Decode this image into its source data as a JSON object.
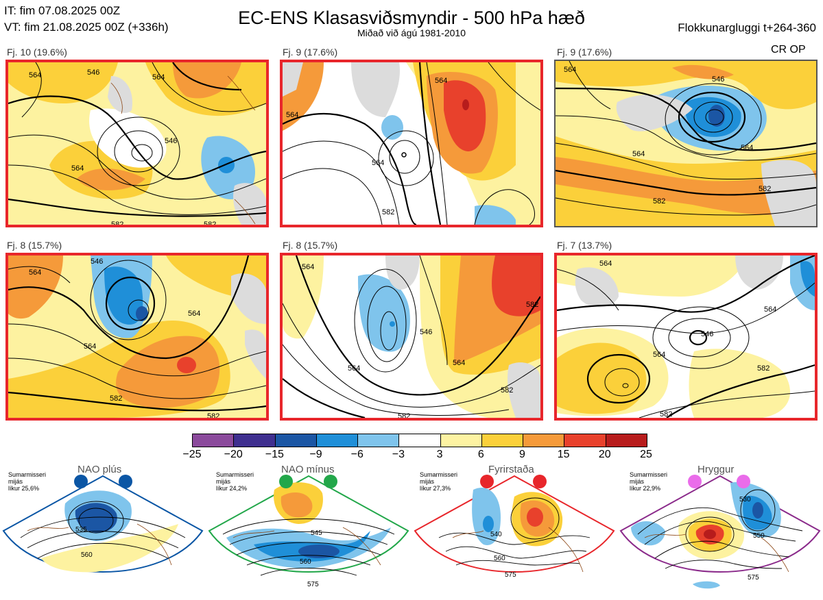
{
  "header": {
    "it": "IT: fim 07.08.2025 00Z",
    "vt": "VT: fim 21.08.2025 00Z  (+336h)",
    "title": "EC-ENS Klasasviðsmyndir - 500 hPa hæð",
    "subtitle": "Miðað við ágú 1981-2010",
    "cluster_window": "Flokkunargluggi t+264-360"
  },
  "panels": [
    {
      "label": "Fj. 10 (19.6%)",
      "contours": [
        "564",
        "546",
        "564",
        "546",
        "564",
        "582",
        "582"
      ]
    },
    {
      "label": "Fj. 9 (17.6%)",
      "contours": [
        "564",
        "564",
        "564",
        "582"
      ]
    },
    {
      "label": "Fj. 9 (17.6%)",
      "badge": "CR OP",
      "contours": [
        "564",
        "546",
        "564",
        "564",
        "582",
        "582"
      ]
    },
    {
      "label": "Fj. 8 (15.7%)",
      "contours": [
        "564",
        "546",
        "564",
        "564",
        "582",
        "582"
      ]
    },
    {
      "label": "Fj. 8 (15.7%)",
      "contours": [
        "564",
        "546",
        "564",
        "564",
        "582",
        "582",
        "582"
      ]
    },
    {
      "label": "Fj. 7 (13.7%)",
      "contours": [
        "564",
        "546",
        "564",
        "564",
        "582",
        "582"
      ]
    }
  ],
  "colorbar": {
    "ticks": [
      "−25",
      "−20",
      "−15",
      "−9",
      "−6",
      "−3",
      "3",
      "6",
      "9",
      "15",
      "20",
      "25"
    ],
    "colors": [
      "#8b4a9c",
      "#3f2f8f",
      "#1b56a4",
      "#1f8fd8",
      "#7fc4ec",
      "#ffffff",
      "#fdf3a2",
      "#fbd03a",
      "#f59a3a",
      "#e8412c",
      "#b71c1c"
    ]
  },
  "regimes": [
    {
      "title": "NAO plús",
      "note": "Sumarmisseri\nmijás\nlíkur 25,6%",
      "dot_color": "#0b56a5",
      "frame_color": "#0b56a5",
      "contours": [
        "535",
        "560"
      ]
    },
    {
      "title": "NAO mínus",
      "note": "Sumarmisseri\nmijás\nlíkur 24,2%",
      "dot_color": "#22a74a",
      "frame_color": "#22a74a",
      "contours": [
        "545",
        "560",
        "575"
      ]
    },
    {
      "title": "Fyrirstaða",
      "note": "Sumarmisseri\nmijás\nlíkur 27,3%",
      "dot_color": "#e8262b",
      "frame_color": "#e8262b",
      "contours": [
        "540",
        "560",
        "575"
      ]
    },
    {
      "title": "Hryggur",
      "note": "Sumarmisseri\nmijás\nlíkur 22,9%",
      "dot_color": "#ea6cea",
      "frame_color": "#8b2b8b",
      "contours": [
        "530",
        "550",
        "575"
      ]
    }
  ]
}
